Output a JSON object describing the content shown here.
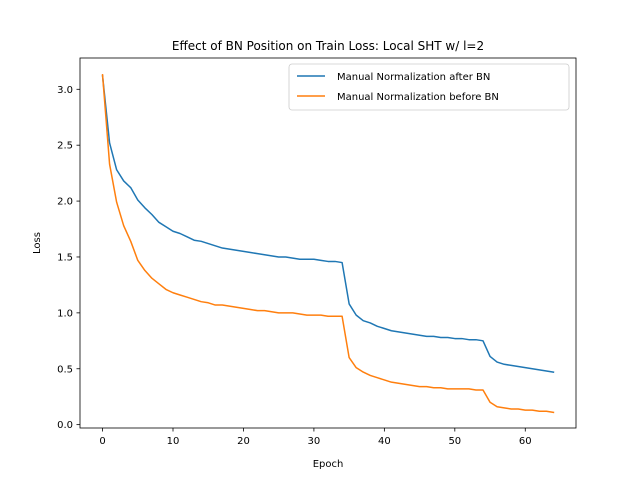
{
  "chart_data": {
    "type": "line",
    "title": "Effect of BN Position on Train Loss: Local SHT w/ l=2",
    "xlabel": "Epoch",
    "ylabel": "Loss",
    "xlim": [
      -3.2,
      67.2
    ],
    "ylim": [
      -0.03,
      3.28
    ],
    "xticks": [
      0,
      10,
      20,
      30,
      40,
      50,
      60
    ],
    "yticks": [
      0.0,
      0.5,
      1.0,
      1.5,
      2.0,
      2.5,
      3.0
    ],
    "ytick_labels": [
      "0.0",
      "0.5",
      "1.0",
      "1.5",
      "2.0",
      "2.5",
      "3.0"
    ],
    "grid": false,
    "legend_position": "top-right",
    "series": [
      {
        "name": "Manual Normalization after BN",
        "color": "#1f77b4",
        "x": [
          0,
          1,
          2,
          3,
          4,
          5,
          6,
          7,
          8,
          9,
          10,
          11,
          12,
          13,
          14,
          15,
          16,
          17,
          18,
          19,
          20,
          21,
          22,
          23,
          24,
          25,
          26,
          27,
          28,
          29,
          30,
          31,
          32,
          33,
          34,
          35,
          36,
          37,
          38,
          39,
          40,
          41,
          42,
          43,
          44,
          45,
          46,
          47,
          48,
          49,
          50,
          51,
          52,
          53,
          54,
          55,
          56,
          57,
          58,
          59,
          60,
          61,
          62,
          63,
          64
        ],
        "values": [
          3.12,
          2.52,
          2.28,
          2.18,
          2.12,
          2.01,
          1.94,
          1.88,
          1.81,
          1.77,
          1.73,
          1.71,
          1.68,
          1.65,
          1.64,
          1.62,
          1.6,
          1.58,
          1.57,
          1.56,
          1.55,
          1.54,
          1.53,
          1.52,
          1.51,
          1.5,
          1.5,
          1.49,
          1.48,
          1.48,
          1.48,
          1.47,
          1.46,
          1.46,
          1.45,
          1.08,
          0.98,
          0.93,
          0.91,
          0.88,
          0.86,
          0.84,
          0.83,
          0.82,
          0.81,
          0.8,
          0.79,
          0.79,
          0.78,
          0.78,
          0.77,
          0.77,
          0.76,
          0.76,
          0.75,
          0.61,
          0.56,
          0.54,
          0.53,
          0.52,
          0.51,
          0.5,
          0.49,
          0.48,
          0.47
        ]
      },
      {
        "name": "Manual Normalization before BN",
        "color": "#ff7f0e",
        "x": [
          0,
          1,
          2,
          3,
          4,
          5,
          6,
          7,
          8,
          9,
          10,
          11,
          12,
          13,
          14,
          15,
          16,
          17,
          18,
          19,
          20,
          21,
          22,
          23,
          24,
          25,
          26,
          27,
          28,
          29,
          30,
          31,
          32,
          33,
          34,
          35,
          36,
          37,
          38,
          39,
          40,
          41,
          42,
          43,
          44,
          45,
          46,
          47,
          48,
          49,
          50,
          51,
          52,
          53,
          54,
          55,
          56,
          57,
          58,
          59,
          60,
          61,
          62,
          63,
          64
        ],
        "values": [
          3.13,
          2.33,
          1.99,
          1.78,
          1.64,
          1.47,
          1.38,
          1.31,
          1.26,
          1.21,
          1.18,
          1.16,
          1.14,
          1.12,
          1.1,
          1.09,
          1.07,
          1.07,
          1.06,
          1.05,
          1.04,
          1.03,
          1.02,
          1.02,
          1.01,
          1.0,
          1.0,
          1.0,
          0.99,
          0.98,
          0.98,
          0.98,
          0.97,
          0.97,
          0.97,
          0.6,
          0.51,
          0.47,
          0.44,
          0.42,
          0.4,
          0.38,
          0.37,
          0.36,
          0.35,
          0.34,
          0.34,
          0.33,
          0.33,
          0.32,
          0.32,
          0.32,
          0.32,
          0.31,
          0.31,
          0.2,
          0.16,
          0.15,
          0.14,
          0.14,
          0.13,
          0.13,
          0.12,
          0.12,
          0.11
        ]
      }
    ]
  }
}
